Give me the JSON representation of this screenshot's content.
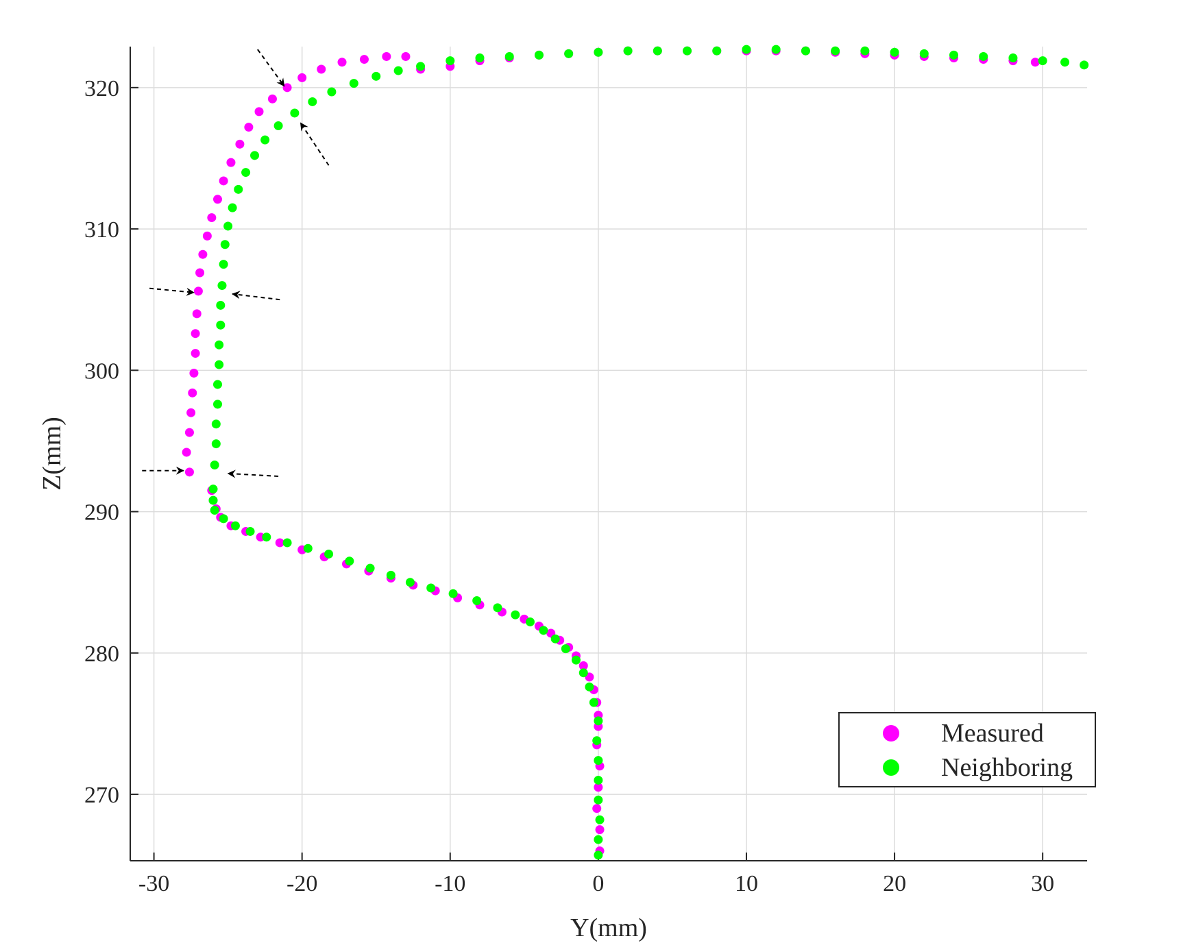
{
  "chart_data": {
    "type": "scatter",
    "xlabel": "Y(mm)",
    "ylabel": "Z(mm)",
    "xlim": [
      -31.6,
      33
    ],
    "ylim": [
      265.3,
      322.9
    ],
    "xticks": [
      -30,
      -20,
      -10,
      0,
      10,
      20,
      30
    ],
    "yticks": [
      270,
      280,
      290,
      300,
      310,
      320
    ],
    "xtick_labels": [
      "-30",
      "-20",
      "-10",
      "0",
      "10",
      "20",
      "30"
    ],
    "ytick_labels": [
      "270",
      "280",
      "290",
      "300",
      "310",
      "320"
    ],
    "grid": true,
    "legend_position": "bottom-right",
    "series": [
      {
        "name": "Measured",
        "color": "#ff00ff",
        "x": [
          0.1,
          0.1,
          -0.1,
          0.0,
          0.1,
          -0.1,
          0.0,
          0.0,
          -0.1,
          -0.3,
          -0.6,
          -1.0,
          -1.5,
          -2.0,
          -2.6,
          -3.2,
          -4.0,
          -5.0,
          -6.5,
          -8.0,
          -9.5,
          -11.0,
          -12.5,
          -14.0,
          -15.5,
          -17.0,
          -18.5,
          -20.0,
          -21.5,
          -22.8,
          -23.8,
          -24.8,
          -25.5,
          -25.8,
          -26.0,
          -26.1,
          -27.6,
          -27.8,
          -27.6,
          -27.5,
          -27.4,
          -27.3,
          -27.2,
          -27.2,
          -27.1,
          -27.0,
          -26.9,
          -26.7,
          -26.4,
          -26.1,
          -25.7,
          -25.3,
          -24.8,
          -24.2,
          -23.6,
          -22.9,
          -22.0,
          -21.0,
          -20.0,
          -18.7,
          -17.3,
          -15.8,
          -14.3,
          -13.0,
          -12.0,
          -10.0,
          -8.0,
          -6.0,
          -4.0,
          -2.0,
          0.0,
          2.0,
          4.0,
          6.0,
          8.0,
          10.0,
          12.0,
          14.0,
          16.0,
          18.0,
          20.0,
          22.0,
          24.0,
          26.0,
          28.0,
          29.5
        ],
        "y": [
          266.0,
          267.5,
          269.0,
          270.5,
          272.0,
          273.5,
          274.8,
          275.6,
          276.5,
          277.4,
          278.3,
          279.1,
          279.8,
          280.4,
          280.9,
          281.4,
          281.9,
          282.4,
          282.9,
          283.4,
          283.9,
          284.4,
          284.8,
          285.3,
          285.8,
          286.3,
          286.8,
          287.3,
          287.8,
          288.2,
          288.6,
          289.0,
          289.6,
          290.2,
          290.8,
          291.5,
          292.8,
          294.2,
          295.6,
          297.0,
          298.4,
          299.8,
          301.2,
          302.6,
          304.0,
          305.6,
          306.9,
          308.2,
          309.5,
          310.8,
          312.1,
          313.4,
          314.7,
          316.0,
          317.2,
          318.3,
          319.2,
          320.0,
          320.7,
          321.3,
          321.8,
          322.0,
          322.2,
          322.2,
          321.3,
          321.5,
          321.9,
          322.1,
          322.3,
          322.4,
          322.5,
          322.6,
          322.6,
          322.6,
          322.6,
          322.6,
          322.6,
          322.6,
          322.5,
          322.4,
          322.3,
          322.2,
          322.1,
          322.0,
          321.9,
          321.8
        ]
      },
      {
        "name": "Neighboring",
        "color": "#00ff00",
        "x": [
          0.0,
          0.0,
          0.1,
          0.0,
          0.0,
          0.0,
          -0.1,
          0.0,
          -0.3,
          -0.6,
          -1.0,
          -1.5,
          -2.2,
          -2.9,
          -3.7,
          -4.6,
          -5.6,
          -6.8,
          -8.2,
          -9.8,
          -11.3,
          -12.7,
          -14.0,
          -15.4,
          -16.8,
          -18.2,
          -19.6,
          -21.0,
          -22.4,
          -23.5,
          -24.5,
          -25.3,
          -25.9,
          -26.0,
          -26.0,
          -25.9,
          -25.8,
          -25.8,
          -25.7,
          -25.7,
          -25.6,
          -25.6,
          -25.5,
          -25.5,
          -25.4,
          -25.3,
          -25.2,
          -25.0,
          -24.7,
          -24.3,
          -23.8,
          -23.2,
          -22.5,
          -21.6,
          -20.5,
          -19.3,
          -18.0,
          -16.5,
          -15.0,
          -13.5,
          -12.0,
          -10.0,
          -8.0,
          -6.0,
          -4.0,
          -2.0,
          0.0,
          2.0,
          4.0,
          6.0,
          8.0,
          10.0,
          12.0,
          14.0,
          16.0,
          18.0,
          20.0,
          22.0,
          24.0,
          26.0,
          28.0,
          30.0,
          31.5,
          32.8
        ],
        "y": [
          265.7,
          266.8,
          268.2,
          269.6,
          271.0,
          272.4,
          273.8,
          275.2,
          276.5,
          277.6,
          278.6,
          279.5,
          280.3,
          281.0,
          281.6,
          282.2,
          282.7,
          283.2,
          283.7,
          284.2,
          284.6,
          285.0,
          285.5,
          286.0,
          286.5,
          287.0,
          287.4,
          287.8,
          288.2,
          288.6,
          289.0,
          289.5,
          290.1,
          290.8,
          291.6,
          293.3,
          294.8,
          296.2,
          297.6,
          299.0,
          300.4,
          301.8,
          303.2,
          304.6,
          306.0,
          307.5,
          308.9,
          310.2,
          311.5,
          312.8,
          314.0,
          315.2,
          316.3,
          317.3,
          318.2,
          319.0,
          319.7,
          320.3,
          320.8,
          321.2,
          321.5,
          321.9,
          322.1,
          322.2,
          322.3,
          322.4,
          322.5,
          322.6,
          322.6,
          322.6,
          322.6,
          322.7,
          322.7,
          322.6,
          322.6,
          322.6,
          322.5,
          322.4,
          322.3,
          322.2,
          322.1,
          321.9,
          321.8,
          321.6
        ]
      }
    ],
    "annotations": [
      {
        "type": "arrow",
        "from": [
          -23.0,
          322.7
        ],
        "to": [
          -21.2,
          320.1
        ]
      },
      {
        "type": "arrow",
        "from": [
          -18.2,
          314.5
        ],
        "to": [
          -20.1,
          317.5
        ]
      },
      {
        "type": "arrow",
        "from": [
          -30.3,
          305.8
        ],
        "to": [
          -27.3,
          305.5
        ]
      },
      {
        "type": "arrow",
        "from": [
          -21.5,
          305.0
        ],
        "to": [
          -24.7,
          305.4
        ]
      },
      {
        "type": "arrow",
        "from": [
          -30.8,
          292.9
        ],
        "to": [
          -28.0,
          292.9
        ]
      },
      {
        "type": "arrow",
        "from": [
          -21.6,
          292.5
        ],
        "to": [
          -25.0,
          292.7
        ]
      }
    ]
  }
}
